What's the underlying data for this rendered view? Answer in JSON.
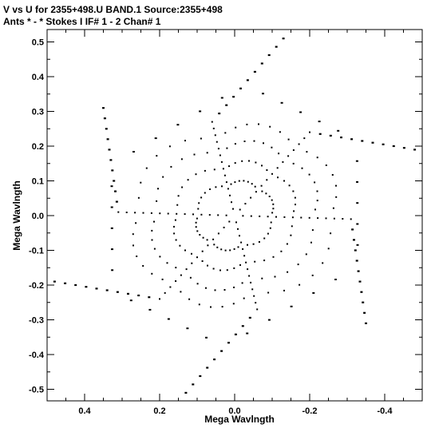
{
  "header": {
    "line1": "V vs U for 2355+498.U BAND.1   Source:2355+498",
    "line2": "Ants * - *     Stokes I  IF# 1 - 2  Chan# 1"
  },
  "chart_data": {
    "type": "scatter",
    "title": "V vs U for 2355+498.U BAND.1   Source:2355+498",
    "subtitle": "Ants * - *     Stokes I  IF# 1 - 2  Chan# 1",
    "xlabel": "Mega Wavlngth",
    "ylabel": "Mega Wavlngth",
    "xlim": [
      0.5,
      -0.5
    ],
    "ylim": [
      -0.52,
      0.55
    ],
    "x_reversed": true,
    "x_ticks": [
      0.4,
      0.2,
      0.0,
      -0.2,
      -0.4
    ],
    "x_tick_labels": [
      "0.4",
      "0.2",
      "0.0",
      "-0.2",
      "-0.4"
    ],
    "y_ticks": [
      0.5,
      0.4,
      0.3,
      0.2,
      0.1,
      0.0,
      -0.1,
      -0.2,
      -0.3,
      -0.4,
      -0.5
    ],
    "y_tick_labels": [
      "0.5",
      "0.4",
      "0.3",
      "0.2",
      "0.1",
      "0.0",
      "-0.1",
      "-0.2",
      "-0.3",
      "-0.4",
      "-0.5"
    ],
    "grid": false,
    "marker_color": "#000000",
    "pattern": "six-armed star uv coverage",
    "arms": [
      {
        "tip": [
          -0.13,
          0.51
        ],
        "shoulder": [
          0.06,
          0.27
        ]
      },
      {
        "tip": [
          -0.48,
          0.19
        ],
        "shoulder": [
          -0.2,
          0.24
        ]
      },
      {
        "tip": [
          -0.35,
          -0.31
        ],
        "shoulder": [
          -0.31,
          -0.01
        ]
      },
      {
        "tip": [
          0.13,
          -0.51
        ],
        "shoulder": [
          -0.06,
          -0.27
        ]
      },
      {
        "tip": [
          0.48,
          -0.19
        ],
        "shoulder": [
          0.2,
          -0.24
        ]
      },
      {
        "tip": [
          0.35,
          0.31
        ],
        "shoulder": [
          0.31,
          0.01
        ]
      }
    ]
  }
}
